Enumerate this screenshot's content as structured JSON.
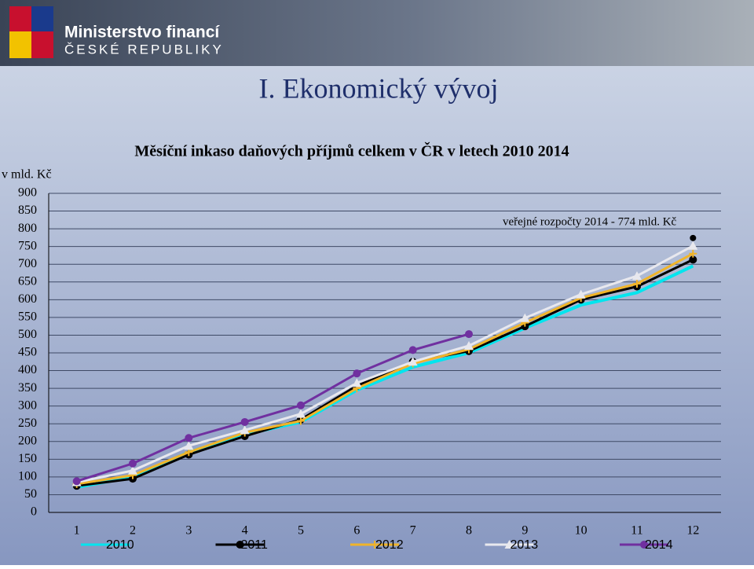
{
  "header": {
    "title": "Ministerstvo financí",
    "subtitle": "ČESKÉ REPUBLIKY"
  },
  "slide_title": "I. Ekonomický vývoj",
  "chart_data": {
    "type": "line",
    "title": "Měsíční inkaso daňových příjmů celkem v ČR v letech 2010 2014",
    "y_label": "v mld. Kč",
    "categories": [
      1,
      2,
      3,
      4,
      5,
      6,
      7,
      8,
      9,
      10,
      11,
      12
    ],
    "series": [
      {
        "name": "2010",
        "color": "#00e5ee",
        "marker": "none",
        "values": [
          71,
          100,
          170,
          220,
          255,
          345,
          410,
          450,
          520,
          585,
          620,
          695
        ]
      },
      {
        "name": "2011",
        "color": "#000000",
        "marker": "circle",
        "values": [
          75,
          95,
          163,
          215,
          262,
          357,
          425,
          455,
          525,
          600,
          637,
          713
        ]
      },
      {
        "name": "2012",
        "color": "#f0b429",
        "marker": "plus",
        "values": [
          80,
          105,
          170,
          225,
          258,
          350,
          420,
          460,
          535,
          605,
          645,
          730
        ]
      },
      {
        "name": "2013",
        "color": "#e8e8ee",
        "marker": "triangle",
        "values": [
          85,
          118,
          188,
          232,
          278,
          365,
          425,
          470,
          548,
          615,
          667,
          752
        ]
      },
      {
        "name": "2014",
        "color": "#7030a0",
        "marker": "circle",
        "values": [
          88,
          138,
          210,
          255,
          302,
          392,
          458,
          503,
          null,
          null,
          null,
          null
        ]
      }
    ],
    "annotation": {
      "text": "veřejné rozpočty 2014 - 774 mld. Kč",
      "value": 774
    },
    "ylim": [
      0,
      900
    ],
    "yticks": [
      0,
      50,
      100,
      150,
      200,
      250,
      300,
      350,
      400,
      450,
      500,
      550,
      600,
      650,
      700,
      750,
      800,
      850,
      900
    ],
    "grid": true
  }
}
